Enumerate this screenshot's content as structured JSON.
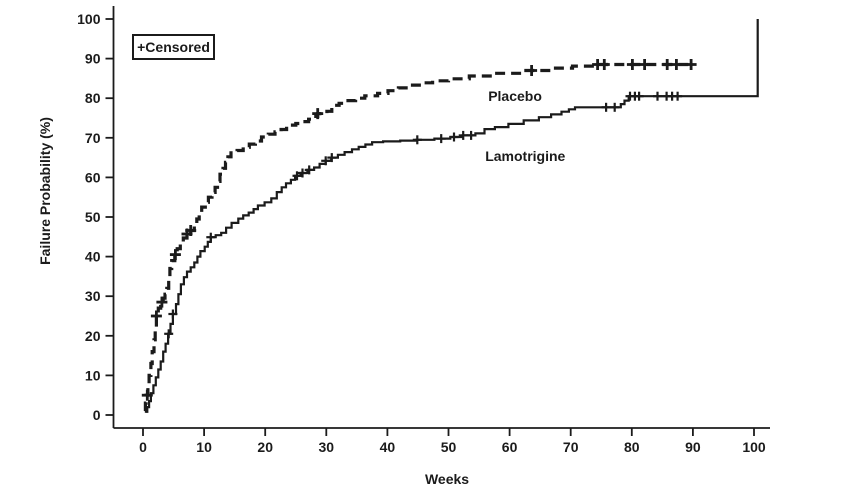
{
  "colors": {
    "ink": "#1b1b1b",
    "background": "#ffffff"
  },
  "chart_data": {
    "type": "line",
    "subtype": "kaplan-meier-failure-step",
    "title": "",
    "xlabel": "Weeks",
    "ylabel": "Failure Probability (%)",
    "xlim": [
      0,
      100
    ],
    "ylim": [
      0,
      100
    ],
    "xticks": [
      0,
      10,
      20,
      30,
      40,
      50,
      60,
      70,
      80,
      90,
      100
    ],
    "yticks": [
      0,
      10,
      20,
      30,
      40,
      50,
      60,
      70,
      80,
      90,
      100
    ],
    "grid": false,
    "legend": {
      "label": "+Censored",
      "position": "top-left"
    },
    "series": [
      {
        "name": "Placebo",
        "line_style": "dashed",
        "label_at": [
          56.5,
          80.6
        ],
        "points": [
          [
            0.3,
            1
          ],
          [
            0.4,
            3
          ],
          [
            0.5,
            5
          ],
          [
            0.8,
            8
          ],
          [
            1.0,
            10
          ],
          [
            1.3,
            13
          ],
          [
            1.5,
            16
          ],
          [
            1.8,
            19
          ],
          [
            2.0,
            22
          ],
          [
            2.2,
            25
          ],
          [
            2.5,
            27
          ],
          [
            2.9,
            28.5
          ],
          [
            3.3,
            29.5
          ],
          [
            3.6,
            30.5
          ],
          [
            3.9,
            32
          ],
          [
            4.2,
            34.5
          ],
          [
            4.4,
            37
          ],
          [
            4.7,
            39
          ],
          [
            5.2,
            40.5
          ],
          [
            5.6,
            42
          ],
          [
            6.1,
            43.5
          ],
          [
            6.6,
            44.7
          ],
          [
            7.2,
            45.7
          ],
          [
            7.8,
            46.6
          ],
          [
            8.4,
            47.7
          ],
          [
            8.8,
            49.5
          ],
          [
            9.2,
            51
          ],
          [
            9.6,
            52.5
          ],
          [
            10.2,
            53.7
          ],
          [
            10.7,
            55
          ],
          [
            11.3,
            56.2
          ],
          [
            11.8,
            57.5
          ],
          [
            12.2,
            59
          ],
          [
            12.6,
            60.8
          ],
          [
            13.1,
            62.3
          ],
          [
            13.5,
            63.8
          ],
          [
            13.9,
            65.2
          ],
          [
            14.4,
            66.2
          ],
          [
            15.4,
            66.8
          ],
          [
            16.4,
            67.6
          ],
          [
            17.4,
            68.4
          ],
          [
            18.4,
            69.2
          ],
          [
            19.4,
            70.2
          ],
          [
            20.5,
            70.9
          ],
          [
            21.6,
            71.5
          ],
          [
            22.6,
            72.1
          ],
          [
            23.5,
            73.2
          ],
          [
            25.0,
            73.6
          ],
          [
            26.0,
            74.1
          ],
          [
            27.1,
            74.7
          ],
          [
            28.0,
            75.4
          ],
          [
            28.6,
            76.1
          ],
          [
            30.1,
            76.7
          ],
          [
            30.9,
            78.2
          ],
          [
            32.1,
            78.7
          ],
          [
            33.2,
            79.4
          ],
          [
            34.8,
            80
          ],
          [
            36.3,
            80.6
          ],
          [
            38.4,
            81.2
          ],
          [
            40.1,
            81.9
          ],
          [
            41.8,
            82.6
          ],
          [
            43.8,
            83.3
          ],
          [
            45.5,
            83.9
          ],
          [
            47.4,
            84.4
          ],
          [
            50.0,
            84.9
          ],
          [
            53.4,
            85.6
          ],
          [
            57.4,
            86.3
          ],
          [
            62.1,
            87
          ],
          [
            67.0,
            87.6
          ],
          [
            70.3,
            88.1
          ],
          [
            74.4,
            88.5
          ],
          [
            89.9,
            88.5
          ]
        ],
        "censored": [
          [
            0.7,
            5
          ],
          [
            2.2,
            25
          ],
          [
            3.1,
            28.5
          ],
          [
            5.3,
            40.5
          ],
          [
            7.2,
            45.7
          ],
          [
            7.8,
            46.6
          ],
          [
            28.6,
            76.1
          ],
          [
            63.6,
            87
          ],
          [
            74.4,
            88.5
          ],
          [
            75.5,
            88.5
          ],
          [
            80.1,
            88.5
          ],
          [
            82.1,
            88.5
          ],
          [
            85.8,
            88.5
          ],
          [
            87.3,
            88.5
          ],
          [
            89.7,
            88.5
          ]
        ]
      },
      {
        "name": "Lamotrigine",
        "line_style": "solid",
        "label_at": [
          56.0,
          65.4
        ],
        "points": [
          [
            0.4,
            0.8
          ],
          [
            0.7,
            2
          ],
          [
            1.0,
            3.5
          ],
          [
            1.3,
            5.5
          ],
          [
            1.7,
            7.5
          ],
          [
            2.1,
            9.5
          ],
          [
            2.5,
            11.5
          ],
          [
            2.9,
            13.5
          ],
          [
            3.3,
            16
          ],
          [
            3.7,
            18
          ],
          [
            4.1,
            20.5
          ],
          [
            4.5,
            23
          ],
          [
            4.9,
            25.5
          ],
          [
            5.4,
            28
          ],
          [
            5.8,
            30.5
          ],
          [
            6.2,
            33
          ],
          [
            6.7,
            34.8
          ],
          [
            7.2,
            36.2
          ],
          [
            7.8,
            37.3
          ],
          [
            8.4,
            38.5
          ],
          [
            8.9,
            40
          ],
          [
            9.4,
            41.4
          ],
          [
            10.1,
            42.5
          ],
          [
            10.6,
            43.7
          ],
          [
            11.1,
            44.9
          ],
          [
            11.9,
            45.4
          ],
          [
            12.8,
            46
          ],
          [
            13.6,
            47.3
          ],
          [
            14.5,
            48.5
          ],
          [
            15.6,
            49.6
          ],
          [
            16.4,
            50.4
          ],
          [
            17.3,
            51.1
          ],
          [
            18.1,
            52
          ],
          [
            18.8,
            52.9
          ],
          [
            19.9,
            53.7
          ],
          [
            21.0,
            54.7
          ],
          [
            21.9,
            56.3
          ],
          [
            22.7,
            57.5
          ],
          [
            23.4,
            58.5
          ],
          [
            24.2,
            59.4
          ],
          [
            24.9,
            60.4
          ],
          [
            25.8,
            61.1
          ],
          [
            26.9,
            61.9
          ],
          [
            28.0,
            62.5
          ],
          [
            28.9,
            63.4
          ],
          [
            29.9,
            64.2
          ],
          [
            30.8,
            65
          ],
          [
            31.9,
            65.7
          ],
          [
            33.0,
            66.4
          ],
          [
            34.2,
            67.1
          ],
          [
            35.3,
            67.7
          ],
          [
            36.4,
            68.3
          ],
          [
            37.5,
            68.9
          ],
          [
            39.3,
            69.1
          ],
          [
            42.1,
            69.3
          ],
          [
            44.7,
            69.5
          ],
          [
            47.7,
            69.8
          ],
          [
            50.3,
            70.2
          ],
          [
            52.3,
            70.6
          ],
          [
            54.4,
            71.1
          ],
          [
            55.9,
            72.2
          ],
          [
            57.6,
            72.7
          ],
          [
            59.8,
            73.5
          ],
          [
            62.3,
            74.4
          ],
          [
            64.8,
            75.2
          ],
          [
            66.8,
            75.9
          ],
          [
            68.5,
            76.6
          ],
          [
            69.7,
            77.2
          ],
          [
            70.7,
            77.7
          ],
          [
            78.2,
            78.5
          ],
          [
            78.8,
            79.4
          ],
          [
            79.5,
            80.5
          ],
          [
            100.6,
            80.5
          ],
          [
            100.6,
            100
          ]
        ],
        "censored": [
          [
            4.2,
            20.5
          ],
          [
            4.9,
            25.5
          ],
          [
            11.1,
            44.9
          ],
          [
            25.2,
            60.4
          ],
          [
            26.1,
            61.1
          ],
          [
            27.2,
            61.9
          ],
          [
            29.9,
            64.2
          ],
          [
            30.9,
            65
          ],
          [
            44.9,
            69.5
          ],
          [
            48.8,
            69.8
          ],
          [
            50.9,
            70.2
          ],
          [
            52.4,
            70.6
          ],
          [
            53.7,
            70.6
          ],
          [
            75.8,
            77.7
          ],
          [
            77.2,
            77.7
          ],
          [
            79.7,
            80.5
          ],
          [
            80.5,
            80.5
          ],
          [
            81.2,
            80.5
          ],
          [
            84.2,
            80.5
          ],
          [
            85.7,
            80.5
          ],
          [
            86.6,
            80.5
          ],
          [
            87.5,
            80.5
          ]
        ]
      }
    ]
  }
}
